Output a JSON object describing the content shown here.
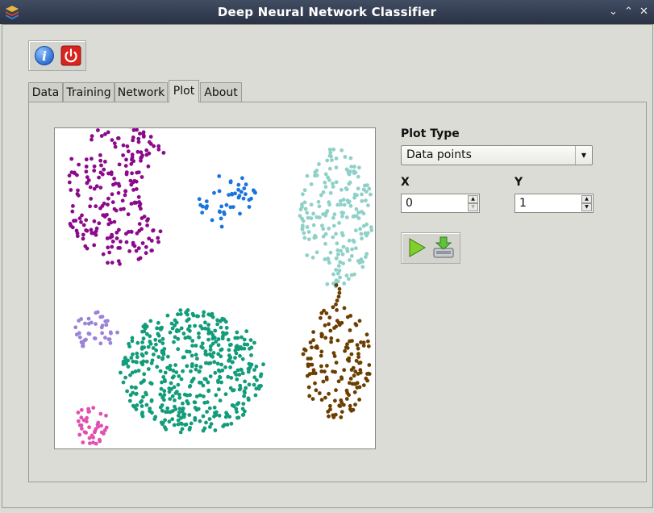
{
  "window": {
    "title": "Deep Neural Network Classifier",
    "controls": [
      "⌄",
      "⌃",
      "✕"
    ]
  },
  "toolbar": {
    "info_icon": "info-icon",
    "power_icon": "power-icon"
  },
  "tabs": [
    {
      "label": "Data",
      "active": false
    },
    {
      "label": "Training",
      "active": false
    },
    {
      "label": "Network",
      "active": false
    },
    {
      "label": "Plot",
      "active": true
    },
    {
      "label": "About",
      "active": false
    }
  ],
  "plot_settings": {
    "plot_type_label": "Plot Type",
    "plot_type_value": "Data points",
    "x_label": "X",
    "x_value": "0",
    "y_label": "Y",
    "y_value": "1"
  },
  "actions": {
    "run_icon": "play-icon",
    "save_icon": "download-icon"
  },
  "chart_data": {
    "type": "scatter",
    "title": "",
    "xlabel": "",
    "ylabel": "",
    "xlim": [
      0,
      1
    ],
    "ylim": [
      0,
      1
    ],
    "grid": false,
    "clusters": [
      {
        "color": "#8b0a8b",
        "cx": 0.2,
        "cy": 0.8,
        "count": 230,
        "shape": "crescent"
      },
      {
        "color": "#1874e0",
        "cx": 0.54,
        "cy": 0.77,
        "count": 45,
        "shape": "blob"
      },
      {
        "color": "#8fd1c8",
        "cx": 0.88,
        "cy": 0.72,
        "count": 190,
        "shape": "tall-blob"
      },
      {
        "color": "#9a82d8",
        "cx": 0.13,
        "cy": 0.37,
        "count": 40,
        "shape": "blob"
      },
      {
        "color": "#129c7a",
        "cx": 0.43,
        "cy": 0.24,
        "count": 480,
        "shape": "large-blob"
      },
      {
        "color": "#6b3e00",
        "cx": 0.88,
        "cy": 0.27,
        "count": 150,
        "shape": "tall-blob"
      },
      {
        "color": "#e050b0",
        "cx": 0.11,
        "cy": 0.07,
        "count": 40,
        "shape": "blob"
      }
    ]
  }
}
